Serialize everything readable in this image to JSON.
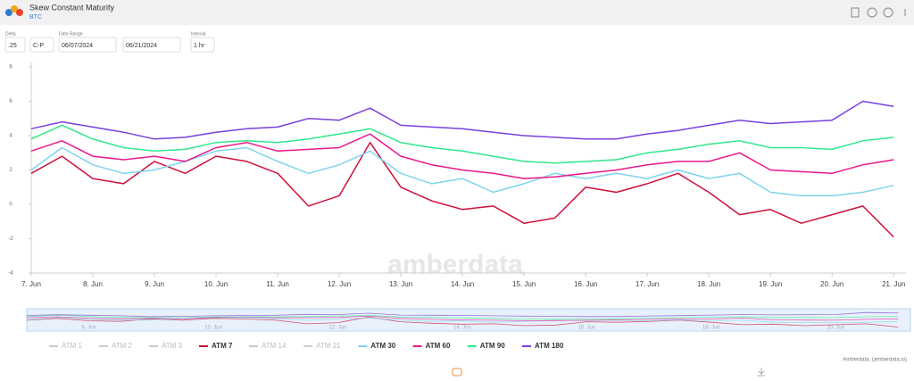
{
  "header": {
    "title": "Skew Constant Maturity",
    "subtitle": "BTC"
  },
  "controls": [
    {
      "label": "Delta",
      "value": ".25"
    },
    {
      "value": "C-P"
    },
    {
      "label": "Date Range",
      "value": "06/07/2024"
    },
    {
      "value": "06/21/2024"
    },
    {
      "label": "Interval",
      "value": "1 hr"
    }
  ],
  "chart_data": {
    "type": "line",
    "x": [
      7,
      7.5,
      8,
      8.5,
      9,
      9.5,
      10,
      10.5,
      11,
      11.5,
      12,
      12.5,
      13,
      13.5,
      14,
      14.5,
      15,
      15.5,
      16,
      16.5,
      17,
      17.5,
      18,
      18.5,
      19,
      19.5,
      20,
      20.5,
      21
    ],
    "xlim": [
      7,
      21.2
    ],
    "xticks": [
      {
        "value": 7,
        "label": "7. Jun"
      },
      {
        "value": 8,
        "label": "8. Jun"
      },
      {
        "value": 9,
        "label": "9. Jun"
      },
      {
        "value": 10,
        "label": "10. Jun"
      },
      {
        "value": 11,
        "label": "11. Jun"
      },
      {
        "value": 12,
        "label": "12. Jun"
      },
      {
        "value": 13,
        "label": "13. Jun"
      },
      {
        "value": 14,
        "label": "14. Jun"
      },
      {
        "value": 15,
        "label": "15. Jun"
      },
      {
        "value": 16,
        "label": "16. Jun"
      },
      {
        "value": 17,
        "label": "17. Jun"
      },
      {
        "value": 18,
        "label": "18. Jun"
      },
      {
        "value": 19,
        "label": "19. Jun"
      },
      {
        "value": 20,
        "label": "20. Jun"
      },
      {
        "value": 21,
        "label": "21. Jun"
      }
    ],
    "ylim": [
      -4,
      8
    ],
    "yticks": [
      -4,
      -2,
      0,
      2,
      4,
      6,
      8
    ],
    "grid": false,
    "legend_position": "bottom",
    "watermark": "amberdata",
    "credits": "Amberdata, (amberdata.io)",
    "series": [
      {
        "name": "ATM 1",
        "visible": false
      },
      {
        "name": "ATM 2",
        "visible": false
      },
      {
        "name": "ATM 3",
        "visible": false
      },
      {
        "name": "ATM 7",
        "color": "#d0103a",
        "values": [
          1.8,
          2.8,
          1.5,
          1.2,
          2.5,
          1.8,
          2.8,
          2.5,
          1.8,
          -0.1,
          0.5,
          3.6,
          1.0,
          0.2,
          -0.3,
          -0.1,
          -1.1,
          -0.8,
          1.0,
          0.7,
          1.2,
          1.8,
          0.7,
          -0.6,
          -0.3,
          -1.1,
          -0.6,
          -0.1,
          -1.9
        ]
      },
      {
        "name": "ATM 14",
        "visible": false
      },
      {
        "name": "ATM 21",
        "visible": false
      },
      {
        "name": "ATM 30",
        "color": "#7fd3ee",
        "values": [
          2.0,
          3.3,
          2.3,
          1.8,
          2.0,
          2.5,
          3.1,
          3.3,
          2.5,
          1.8,
          2.3,
          3.1,
          1.8,
          1.2,
          1.5,
          0.7,
          1.2,
          1.8,
          1.5,
          1.8,
          1.5,
          2.0,
          1.5,
          1.8,
          0.7,
          0.5,
          0.5,
          0.7,
          1.1
        ]
      },
      {
        "name": "ATM 60",
        "color": "#e8198b",
        "values": [
          3.1,
          3.7,
          2.8,
          2.6,
          2.8,
          2.5,
          3.3,
          3.6,
          3.1,
          3.2,
          3.3,
          4.1,
          2.8,
          2.3,
          2.0,
          1.8,
          1.5,
          1.6,
          1.8,
          2.0,
          2.3,
          2.5,
          2.5,
          3.0,
          2.0,
          1.9,
          1.8,
          2.3,
          2.6
        ]
      },
      {
        "name": "ATM 90",
        "color": "#2fe88a",
        "values": [
          3.8,
          4.6,
          3.8,
          3.3,
          3.1,
          3.2,
          3.6,
          3.7,
          3.6,
          3.8,
          4.1,
          4.4,
          3.6,
          3.3,
          3.1,
          2.8,
          2.5,
          2.4,
          2.5,
          2.6,
          3.0,
          3.2,
          3.5,
          3.7,
          3.3,
          3.3,
          3.2,
          3.7,
          3.9
        ]
      },
      {
        "name": "ATM 180",
        "color": "#7b3fe0",
        "values": [
          4.4,
          4.8,
          4.5,
          4.2,
          3.8,
          3.9,
          4.2,
          4.4,
          4.5,
          5.0,
          4.9,
          5.6,
          4.6,
          4.5,
          4.4,
          4.2,
          4.0,
          3.9,
          3.8,
          3.8,
          4.1,
          4.3,
          4.6,
          4.9,
          4.7,
          4.8,
          4.9,
          6.0,
          5.7
        ]
      }
    ]
  }
}
